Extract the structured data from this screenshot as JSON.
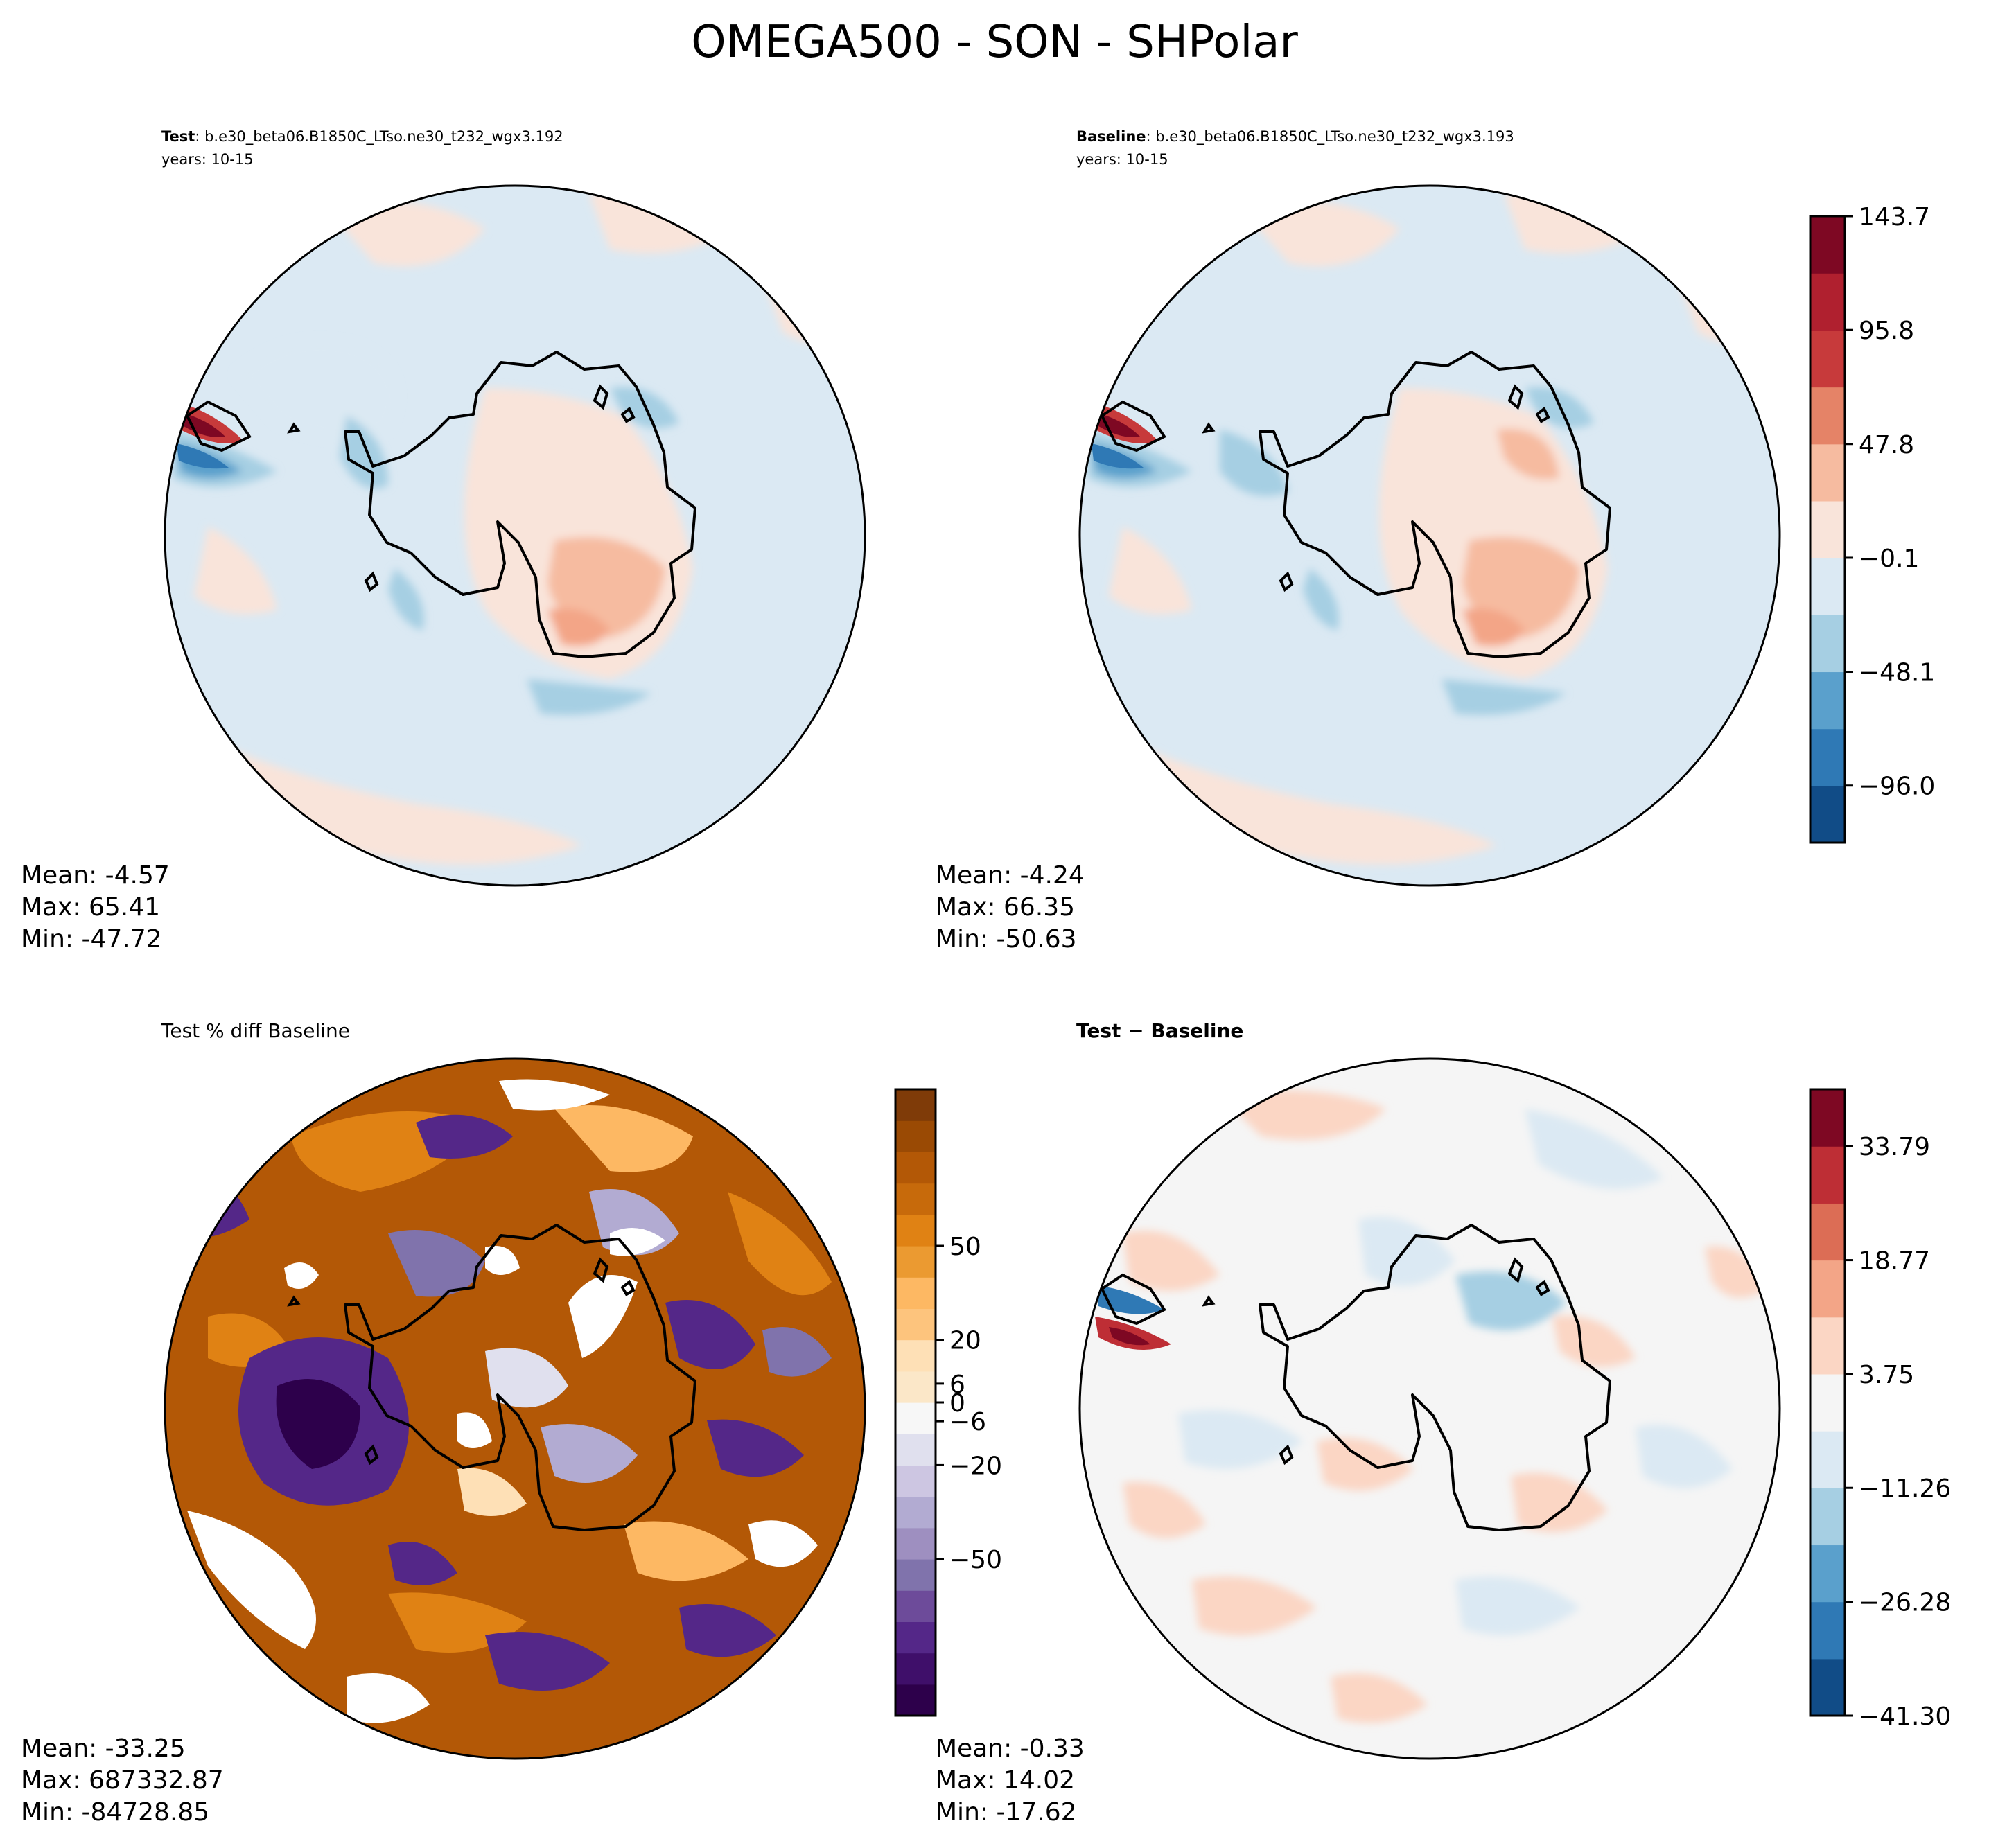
{
  "figure": {
    "title": "OMEGA500 - SON - SHPolar"
  },
  "panels": {
    "test": {
      "label_bold": "Test",
      "case": ": b.e30_beta06.B1850C_LTso.ne30_t232_wgx3.192",
      "years": "years: 10-15",
      "stats": {
        "mean": "Mean: -4.57",
        "max": "Max: 65.41",
        "min": "Min: -47.72"
      }
    },
    "baseline": {
      "label_bold": "Baseline",
      "case": ": b.e30_beta06.B1850C_LTso.ne30_t232_wgx3.193",
      "years": "years: 10-15",
      "stats": {
        "mean": "Mean: -4.24",
        "max": "Max: 66.35",
        "min": "Min: -50.63"
      }
    },
    "pctdiff": {
      "title": "Test % diff Baseline",
      "stats": {
        "mean": "Mean: -33.25",
        "max": "Max: 687332.87",
        "min": "Min: -84728.85"
      }
    },
    "diff": {
      "title": "Test − Baseline",
      "stats": {
        "mean": "Mean: -0.33",
        "max": "Max: 14.02",
        "min": "Min: -17.62"
      }
    }
  },
  "colors": {
    "rdbu": [
      "#114c87",
      "#2f79b5",
      "#5aa0cc",
      "#a6cfe3",
      "#dbe9f3",
      "#f9e4da",
      "#f6bba0",
      "#e58367",
      "#c73a3b",
      "#b0202f",
      "#7e0823"
    ],
    "rdbu_diff": [
      "#114c87",
      "#2f79b5",
      "#5aa0cc",
      "#a6cfe3",
      "#dbe9f3",
      "#f5f5f5",
      "#fbd6c4",
      "#f3a587",
      "#dc6d55",
      "#be2e35",
      "#7e0823"
    ],
    "puor": [
      "#2d004b",
      "#3f0f6a",
      "#542788",
      "#6d4b9a",
      "#8073ac",
      "#9e8fc0",
      "#b2abd2",
      "#cdc6e2",
      "#e0e0ee",
      "#f7f7f7",
      "#fbe7c8",
      "#fee0b6",
      "#fdc47d",
      "#fdb863",
      "#eb9a31",
      "#e08214",
      "#c76a0b",
      "#b35806",
      "#9a4a04",
      "#7f3b08"
    ]
  },
  "chart_data": [
    {
      "type": "heatmap",
      "title": "Test",
      "subtitle": "b.e30_beta06.B1850C_LTso.ne30_t232_wgx3.192 years: 10-15",
      "projection": "SH polar stereographic",
      "mean": -4.57,
      "max": 65.41,
      "min": -47.72,
      "colorbar": {
        "ticks": [
          143.7,
          95.8,
          47.8,
          -0.1,
          -48.1,
          -96.0
        ],
        "tick_labels": [
          "143.7",
          "95.8",
          "47.8",
          "−0.1",
          "−48.1",
          "−96.0"
        ],
        "range": [
          -120.0,
          143.7
        ],
        "levels": 11
      }
    },
    {
      "type": "heatmap",
      "title": "Baseline",
      "subtitle": "b.e30_beta06.B1850C_LTso.ne30_t232_wgx3.193 years: 10-15",
      "projection": "SH polar stereographic",
      "mean": -4.24,
      "max": 66.35,
      "min": -50.63,
      "colorbar": {
        "ticks": [
          143.7,
          95.8,
          47.8,
          -0.1,
          -48.1,
          -96.0
        ],
        "tick_labels": [
          "143.7",
          "95.8",
          "47.8",
          "−0.1",
          "−48.1",
          "−96.0"
        ],
        "range": [
          -120.0,
          143.7
        ],
        "levels": 11
      }
    },
    {
      "type": "heatmap",
      "title": "Test % diff Baseline",
      "projection": "SH polar stereographic",
      "mean": -33.25,
      "max": 687332.87,
      "min": -84728.85,
      "colorbar": {
        "ticks": [
          50,
          20,
          6,
          0,
          -6,
          -20,
          -50
        ],
        "tick_labels": [
          "50",
          "20",
          "6",
          "0",
          "−6",
          "−20",
          "−50"
        ],
        "range": [
          -100,
          100
        ],
        "levels": 20
      }
    },
    {
      "type": "heatmap",
      "title": "Test − Baseline",
      "projection": "SH polar stereographic",
      "mean": -0.33,
      "max": 14.02,
      "min": -17.62,
      "colorbar": {
        "ticks": [
          33.79,
          18.77,
          3.75,
          -11.26,
          -26.28,
          -41.3
        ],
        "tick_labels": [
          "33.79",
          "18.77",
          "3.75",
          "−11.26",
          "−26.28",
          "−41.30"
        ],
        "range": [
          -41.3,
          41.3
        ],
        "levels": 11
      }
    }
  ]
}
